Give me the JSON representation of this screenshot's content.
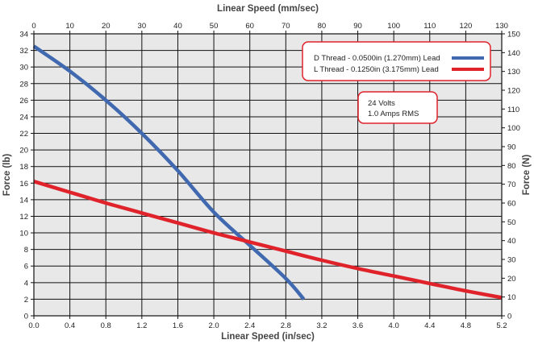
{
  "chart_data": {
    "type": "line",
    "title": "",
    "xlabel_bottom": "Linear Speed (in/sec)",
    "xlabel_top": "Linear Speed (mm/sec)",
    "ylabel_left": "Force (lb)",
    "ylabel_right": "Force (N)",
    "xlim": [
      0,
      5.2
    ],
    "ylim": [
      0,
      34
    ],
    "x_ticks_bottom": [
      "0.0",
      "0.4",
      "0.8",
      "1.2",
      "1.6",
      "2.0",
      "2.4",
      "2.8",
      "3.2",
      "3.6",
      "4.0",
      "4.4",
      "4.8",
      "5.2"
    ],
    "x_ticks_top": [
      "0",
      "10",
      "20",
      "30",
      "40",
      "50",
      "60",
      "70",
      "80",
      "90",
      "100",
      "110",
      "120",
      "130"
    ],
    "y_ticks_left": [
      "0",
      "2",
      "4",
      "6",
      "8",
      "10",
      "12",
      "14",
      "16",
      "18",
      "20",
      "22",
      "24",
      "26",
      "28",
      "30",
      "32",
      "34"
    ],
    "y_ticks_right": [
      "0",
      "10",
      "20",
      "30",
      "40",
      "50",
      "60",
      "70",
      "80",
      "90",
      "100",
      "110",
      "120",
      "130",
      "140",
      "150"
    ],
    "grid": true,
    "legend_position": "top-right",
    "series": [
      {
        "name": "D Thread - 0.0500in (1.270mm) Lead",
        "color": "#4169b0",
        "x": [
          0.0,
          0.4,
          0.8,
          1.2,
          1.6,
          2.0,
          2.4,
          2.8,
          3.0
        ],
        "y": [
          32.5,
          29.5,
          26.0,
          22.0,
          17.5,
          12.5,
          8.5,
          4.5,
          2.0
        ]
      },
      {
        "name": "L Thread - 0.1250in (3.175mm) Lead",
        "color": "#e0232b",
        "x": [
          0.0,
          0.4,
          0.8,
          1.2,
          1.6,
          2.0,
          2.4,
          2.8,
          3.2,
          3.6,
          4.0,
          4.4,
          4.8,
          5.2
        ],
        "y": [
          16.2,
          14.9,
          13.6,
          12.4,
          11.2,
          10.0,
          8.9,
          7.8,
          6.7,
          5.7,
          4.8,
          3.9,
          3.0,
          2.2
        ]
      }
    ],
    "annotation": [
      "24 Volts",
      "1.0 Amps RMS"
    ]
  }
}
